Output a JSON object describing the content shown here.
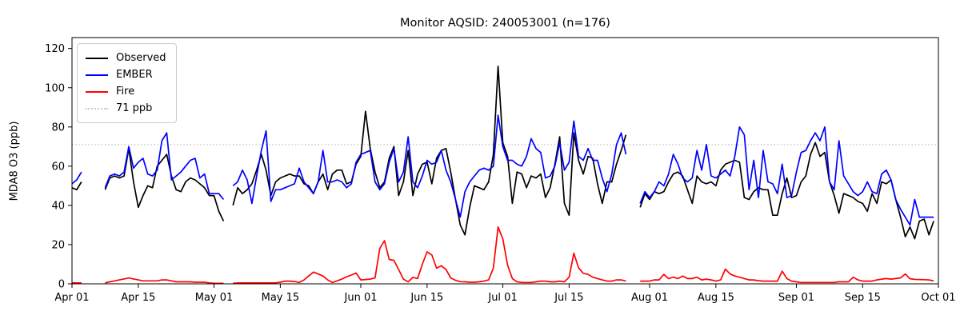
{
  "title": "Monitor AQSID: 240053001 (n=176)",
  "ylabel": "MDA8 O3 (ppb)",
  "legend": {
    "observed": "Observed",
    "ember": "EMBER",
    "fire": "Fire",
    "threshold": "71 ppb"
  },
  "colors": {
    "observed": "#000000",
    "ember": "#0000ff",
    "fire": "#ff0000",
    "threshold_line": "#cccccc",
    "axis": "#000000",
    "background": "#ffffff"
  },
  "chart_data": {
    "type": "line",
    "title": "Monitor AQSID: 240053001 (n=176)",
    "xlabel": "",
    "ylabel": "MDA8 O3 (ppb)",
    "ylim": [
      0,
      125
    ],
    "yticks": [
      0,
      20,
      40,
      60,
      80,
      100,
      120
    ],
    "grid": false,
    "legend_position": "upper left",
    "threshold_ppb": 71,
    "n_points_label": 176,
    "x_frequency": "daily",
    "x_start": "Apr 01",
    "x_end": "Oct 01",
    "n_days": 183,
    "xticks": [
      {
        "day": 0,
        "label": "Apr 01"
      },
      {
        "day": 14,
        "label": "Apr 15"
      },
      {
        "day": 30,
        "label": "May 01"
      },
      {
        "day": 44,
        "label": "May 15"
      },
      {
        "day": 61,
        "label": "Jun 01"
      },
      {
        "day": 75,
        "label": "Jun 15"
      },
      {
        "day": 91,
        "label": "Jul 01"
      },
      {
        "day": 105,
        "label": "Jul 15"
      },
      {
        "day": 122,
        "label": "Aug 01"
      },
      {
        "day": 136,
        "label": "Aug 15"
      },
      {
        "day": 153,
        "label": "Sep 01"
      },
      {
        "day": 167,
        "label": "Sep 15"
      },
      {
        "day": 183,
        "label": "Oct 01"
      }
    ],
    "series": [
      {
        "name": "Observed",
        "color": "#000000",
        "values": [
          49,
          48,
          52,
          null,
          null,
          null,
          null,
          48,
          54,
          55,
          54,
          55,
          69,
          52,
          39,
          45,
          50,
          49,
          60,
          63,
          66,
          55,
          48,
          47,
          52,
          54,
          53,
          51,
          49,
          45,
          45,
          37,
          32,
          null,
          40,
          49,
          46,
          48,
          51,
          58,
          66,
          58,
          45,
          52,
          54,
          55,
          56,
          55,
          55,
          51,
          50,
          46,
          52,
          56,
          48,
          56,
          58,
          58,
          51,
          52,
          61,
          65,
          88,
          69,
          57,
          49,
          52,
          64,
          70,
          45,
          52,
          68,
          45,
          56,
          61,
          62,
          51,
          64,
          68,
          69,
          57,
          43,
          30,
          25,
          39,
          50,
          49,
          48,
          52,
          66,
          111,
          72,
          65,
          41,
          57,
          56,
          49,
          55,
          54,
          56,
          44,
          49,
          61,
          75,
          41,
          35,
          77,
          63,
          56,
          65,
          64,
          51,
          41,
          52,
          52,
          61,
          68,
          76,
          null,
          null,
          39,
          46,
          43,
          47,
          46,
          47,
          52,
          56,
          57,
          55,
          48,
          41,
          55,
          52,
          51,
          52,
          50,
          58,
          61,
          62,
          63,
          62,
          44,
          43,
          47,
          49,
          48,
          48,
          35,
          35,
          46,
          54,
          44,
          45,
          52,
          55,
          66,
          72,
          65,
          67,
          52,
          45,
          36,
          46,
          45,
          44,
          42,
          41,
          37,
          46,
          41,
          52,
          51,
          53,
          43,
          34,
          24,
          29,
          23,
          32,
          33,
          25,
          32
        ]
      },
      {
        "name": "EMBER",
        "color": "#0000ff",
        "values": [
          51,
          53,
          57,
          null,
          null,
          null,
          null,
          49,
          55,
          56,
          55,
          57,
          70,
          59,
          62,
          64,
          56,
          55,
          58,
          73,
          77,
          53,
          55,
          57,
          60,
          63,
          64,
          54,
          56,
          46,
          46,
          46,
          43,
          null,
          50,
          52,
          58,
          53,
          41,
          55,
          68,
          78,
          42,
          48,
          48,
          49,
          50,
          51,
          59,
          52,
          49,
          46,
          52,
          68,
          52,
          52,
          53,
          52,
          49,
          51,
          62,
          66,
          67,
          68,
          52,
          48,
          51,
          62,
          69,
          52,
          57,
          75,
          52,
          49,
          55,
          63,
          61,
          62,
          68,
          58,
          52,
          43,
          34,
          47,
          52,
          55,
          58,
          59,
          58,
          60,
          86,
          70,
          63,
          63,
          61,
          60,
          65,
          74,
          69,
          67,
          54,
          55,
          60,
          72,
          58,
          62,
          83,
          65,
          63,
          69,
          63,
          63,
          54,
          47,
          56,
          71,
          77,
          66,
          null,
          null,
          41,
          47,
          44,
          47,
          52,
          50,
          56,
          66,
          61,
          54,
          52,
          54,
          68,
          58,
          71,
          55,
          54,
          56,
          58,
          55,
          65,
          80,
          76,
          48,
          63,
          44,
          68,
          52,
          51,
          46,
          61,
          44,
          45,
          57,
          67,
          68,
          73,
          77,
          73,
          80,
          52,
          48,
          73,
          55,
          51,
          47,
          45,
          47,
          52,
          47,
          46,
          56,
          58,
          53,
          43,
          38,
          34,
          30,
          43,
          34,
          34,
          34,
          34
        ]
      },
      {
        "name": "Fire",
        "color": "#ff0000",
        "values": [
          0.5,
          0.5,
          0.5,
          null,
          null,
          null,
          null,
          0.5,
          1,
          1.5,
          2,
          2.5,
          3,
          2.5,
          2,
          1.5,
          1.5,
          1.5,
          1.5,
          2,
          2,
          1.5,
          1,
          1,
          1,
          1,
          0.8,
          0.8,
          0.8,
          0.5,
          0.3,
          0.3,
          0.3,
          null,
          0.3,
          0.5,
          0.5,
          0.5,
          0.5,
          0.5,
          0.5,
          0.5,
          0.5,
          0.5,
          0.8,
          1.4,
          1.4,
          1.2,
          0.7,
          2,
          4,
          6,
          5,
          4,
          2,
          0.7,
          1.5,
          2.4,
          3.6,
          4.5,
          5.5,
          2,
          2.2,
          2.4,
          3,
          18,
          22,
          12.4,
          12,
          7.3,
          2.4,
          1,
          3.3,
          2.7,
          10,
          16.3,
          14.7,
          8,
          9.2,
          7.3,
          3,
          1.8,
          1.1,
          1,
          0.8,
          0.8,
          1,
          1.4,
          2,
          8,
          29,
          23,
          9.5,
          2.7,
          1,
          0.7,
          0.7,
          0.7,
          1,
          1.4,
          1.4,
          1,
          1,
          1.4,
          1,
          3.4,
          15.6,
          8.2,
          5.4,
          4.8,
          3.4,
          2.7,
          2,
          1.4,
          1.4,
          2,
          2,
          1.4,
          null,
          null,
          1.4,
          1.4,
          1.4,
          2,
          2,
          4.8,
          2.7,
          3.4,
          2.7,
          4,
          2.7,
          2.7,
          3.4,
          2,
          2.4,
          2,
          1.4,
          2,
          7.5,
          5,
          4,
          3.4,
          2.7,
          2,
          2,
          1.6,
          1.4,
          1.4,
          1.4,
          1.4,
          6.5,
          2.7,
          1.4,
          1,
          0.7,
          0.7,
          0.7,
          0.7,
          0.7,
          0.7,
          0.7,
          0.7,
          1,
          1,
          1,
          3.4,
          2,
          1.4,
          1.4,
          1.4,
          2,
          2.4,
          2.7,
          2.4,
          2.7,
          3,
          5,
          2.6,
          2.3,
          2.2,
          2.1,
          2,
          1.5
        ]
      }
    ]
  }
}
